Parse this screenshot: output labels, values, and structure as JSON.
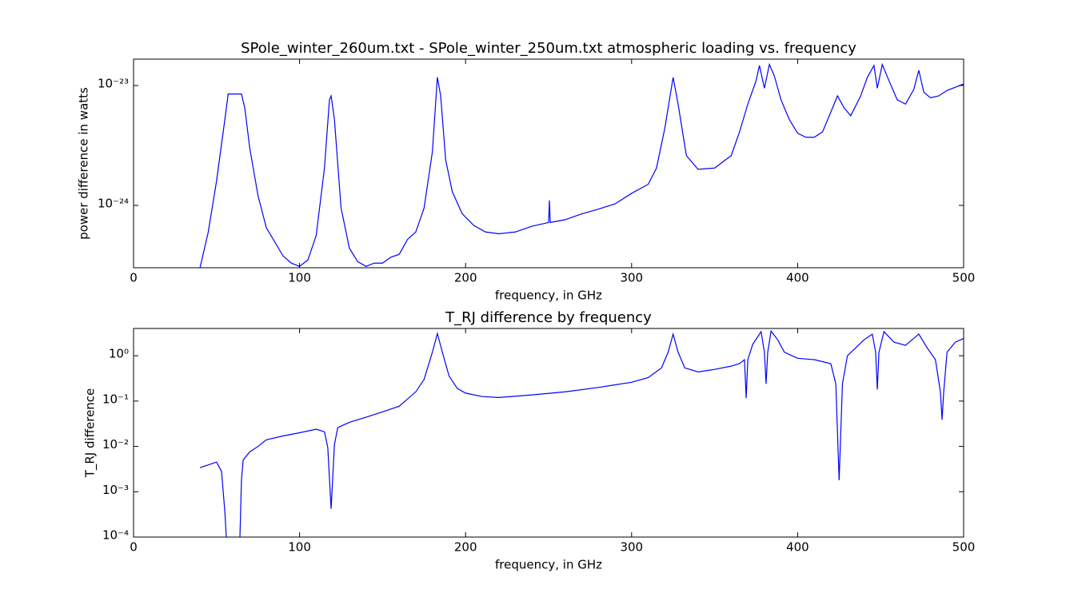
{
  "chart_data": [
    {
      "type": "line",
      "title": "SPole_winter_260um.txt - SPole_winter_250um.txt atmospheric loading vs. frequency",
      "xlabel": "frequency, in GHz",
      "ylabel": "power difference in watts",
      "log_y": true,
      "xlim": [
        0,
        500
      ],
      "xticks": [
        0,
        100,
        200,
        300,
        400,
        500
      ],
      "ylim": [
        3.02e-25,
        1.66e-23
      ],
      "yticks": [
        {
          "value": 1e-24,
          "label": "10⁻²⁴"
        },
        {
          "value": 1e-23,
          "label": "10⁻²³"
        }
      ],
      "series": [
        {
          "color": "#0000ff",
          "x": [
            40,
            45,
            50,
            55,
            57,
            65,
            67,
            70,
            75,
            80,
            90,
            95,
            100,
            105,
            110,
            115,
            118,
            119,
            121,
            125,
            130,
            135,
            140,
            145,
            150,
            155,
            160,
            165,
            170,
            175,
            180,
            183,
            185,
            188,
            192,
            198,
            205,
            212,
            220,
            230,
            240,
            250,
            250.5,
            251,
            260,
            270,
            280,
            290,
            300,
            310,
            315,
            320,
            325,
            328,
            333,
            340,
            350,
            360,
            365,
            370,
            375,
            377,
            380,
            383,
            386,
            390,
            395,
            400,
            405,
            410,
            415,
            420,
            424,
            428,
            432,
            438,
            442,
            446,
            448,
            451,
            455,
            460,
            465,
            470,
            473,
            476,
            480,
            485,
            490,
            500
          ],
          "values": [
            3e-25,
            6e-25,
            1.6e-24,
            5.2e-24,
            8.5e-24,
            8.5e-24,
            6.5e-24,
            3e-24,
            1.2e-24,
            6.5e-25,
            3.8e-25,
            3.3e-25,
            3.1e-25,
            3.5e-25,
            5.6e-25,
            2.05e-24,
            7.6e-24,
            8.2e-24,
            5.2e-24,
            9.5e-25,
            4.4e-25,
            3.4e-25,
            3.1e-25,
            3.3e-25,
            3.3e-25,
            3.7e-25,
            3.9e-25,
            5.2e-25,
            6e-25,
            9.5e-25,
            2.8e-24,
            1.17e-23,
            8.2e-24,
            2.4e-24,
            1.3e-24,
            8.5e-25,
            6.8e-25,
            6e-25,
            5.8e-25,
            6e-25,
            6.7e-25,
            7.2e-25,
            1.1e-24,
            7.2e-25,
            7.6e-25,
            8.5e-25,
            9.3e-25,
            1.03e-24,
            1.26e-24,
            1.5e-24,
            2.05e-24,
            4.4e-24,
            1.17e-23,
            7e-24,
            2.6e-24,
            2e-24,
            2.05e-24,
            2.6e-24,
            4.1e-24,
            7e-24,
            1.1e-23,
            1.47e-23,
            9.5e-24,
            1.5e-23,
            1.2e-23,
            7.6e-24,
            5.2e-24,
            4e-24,
            3.7e-24,
            3.7e-24,
            4.1e-24,
            6e-24,
            8.2e-24,
            6.5e-24,
            5.6e-24,
            8.2e-24,
            1.17e-23,
            1.47e-23,
            9.5e-24,
            1.5e-23,
            1.1e-23,
            7.6e-24,
            7e-24,
            9.3e-24,
            1.34e-23,
            8.8e-24,
            7.9e-24,
            8.2e-24,
            9.1e-24,
            1.03e-23
          ]
        }
      ]
    },
    {
      "type": "line",
      "title": "T_RJ difference by frequency",
      "xlabel": "frequency, in GHz",
      "ylabel": "T_RJ difference",
      "log_y": true,
      "xlim": [
        0,
        500
      ],
      "xticks": [
        0,
        100,
        200,
        300,
        400,
        500
      ],
      "ylim": [
        0.0001,
        4.0
      ],
      "yticks": [
        {
          "value": 0.0001,
          "label": "10⁻⁴"
        },
        {
          "value": 0.001,
          "label": "10⁻³"
        },
        {
          "value": 0.01,
          "label": "10⁻²"
        },
        {
          "value": 0.1,
          "label": "10⁻¹"
        },
        {
          "value": 1,
          "label": "10⁰"
        }
      ],
      "series": [
        {
          "color": "#0000ff",
          "x": [
            40,
            50,
            53,
            55,
            56,
            64,
            65,
            66,
            70,
            75,
            80,
            90,
            100,
            110,
            115,
            117,
            119,
            121,
            123,
            130,
            140,
            150,
            160,
            170,
            175,
            180,
            183,
            186,
            190,
            195,
            200,
            210,
            220,
            240,
            260,
            280,
            300,
            310,
            318,
            322,
            325,
            328,
            332,
            340,
            350,
            360,
            365,
            368,
            369,
            370,
            373,
            378,
            380,
            381,
            382,
            384,
            388,
            392,
            400,
            410,
            420,
            423,
            425,
            427,
            430,
            440,
            445,
            447,
            448,
            449,
            452,
            458,
            465,
            473,
            478,
            483,
            486,
            487,
            488,
            490,
            495,
            500
          ],
          "values": [
            0.0034,
            0.0045,
            0.0028,
            0.00036,
            8e-05,
            8e-05,
            0.0018,
            0.005,
            0.0076,
            0.01,
            0.014,
            0.017,
            0.02,
            0.024,
            0.021,
            0.0094,
            0.00042,
            0.011,
            0.026,
            0.034,
            0.044,
            0.058,
            0.077,
            0.16,
            0.3,
            1.2,
            3.1,
            1.2,
            0.36,
            0.19,
            0.15,
            0.126,
            0.12,
            0.137,
            0.16,
            0.2,
            0.26,
            0.33,
            0.54,
            1.2,
            3.0,
            1.2,
            0.54,
            0.44,
            0.5,
            0.59,
            0.67,
            0.82,
            0.116,
            0.82,
            1.8,
            3.4,
            1.2,
            0.24,
            1.2,
            3.5,
            2.25,
            1.2,
            0.88,
            0.82,
            0.67,
            0.24,
            0.0018,
            0.24,
            1.0,
            2.25,
            3.0,
            1.2,
            0.18,
            1.2,
            3.4,
            2.0,
            1.7,
            3.0,
            1.5,
            0.82,
            0.16,
            0.039,
            0.16,
            1.2,
            2.0,
            2.4
          ]
        }
      ]
    }
  ]
}
